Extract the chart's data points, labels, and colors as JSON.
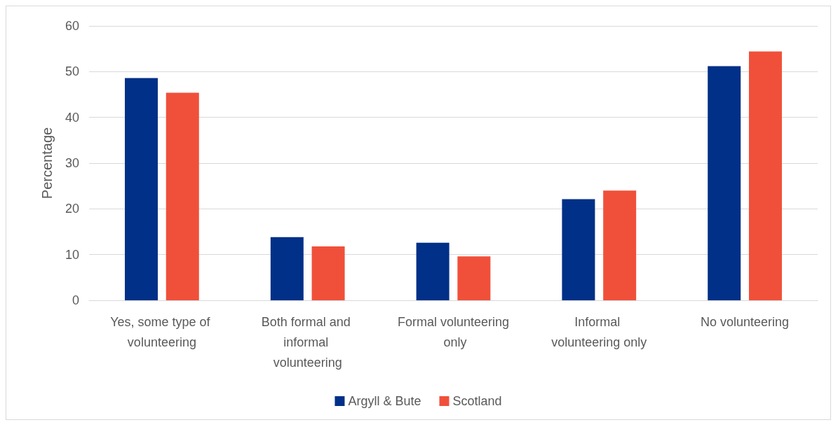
{
  "chart_data": {
    "type": "bar",
    "ylabel": "Percentage",
    "categories": [
      "Yes, some type of volunteering",
      "Both formal and informal volunteering",
      "Formal volunteering only",
      "Informal volunteering only",
      "No volunteering"
    ],
    "series": [
      {
        "name": "Argyll & Bute",
        "color": "#003087",
        "values": [
          48.6,
          13.8,
          12.6,
          22.1,
          51.2
        ]
      },
      {
        "name": "Scotland",
        "color": "#f0503a",
        "values": [
          45.4,
          11.8,
          9.6,
          24.0,
          54.4
        ]
      }
    ],
    "ylim": [
      0,
      60
    ],
    "yticks": [
      0,
      10,
      20,
      30,
      40,
      50,
      60
    ],
    "grid": "y",
    "legend": "bottom"
  }
}
